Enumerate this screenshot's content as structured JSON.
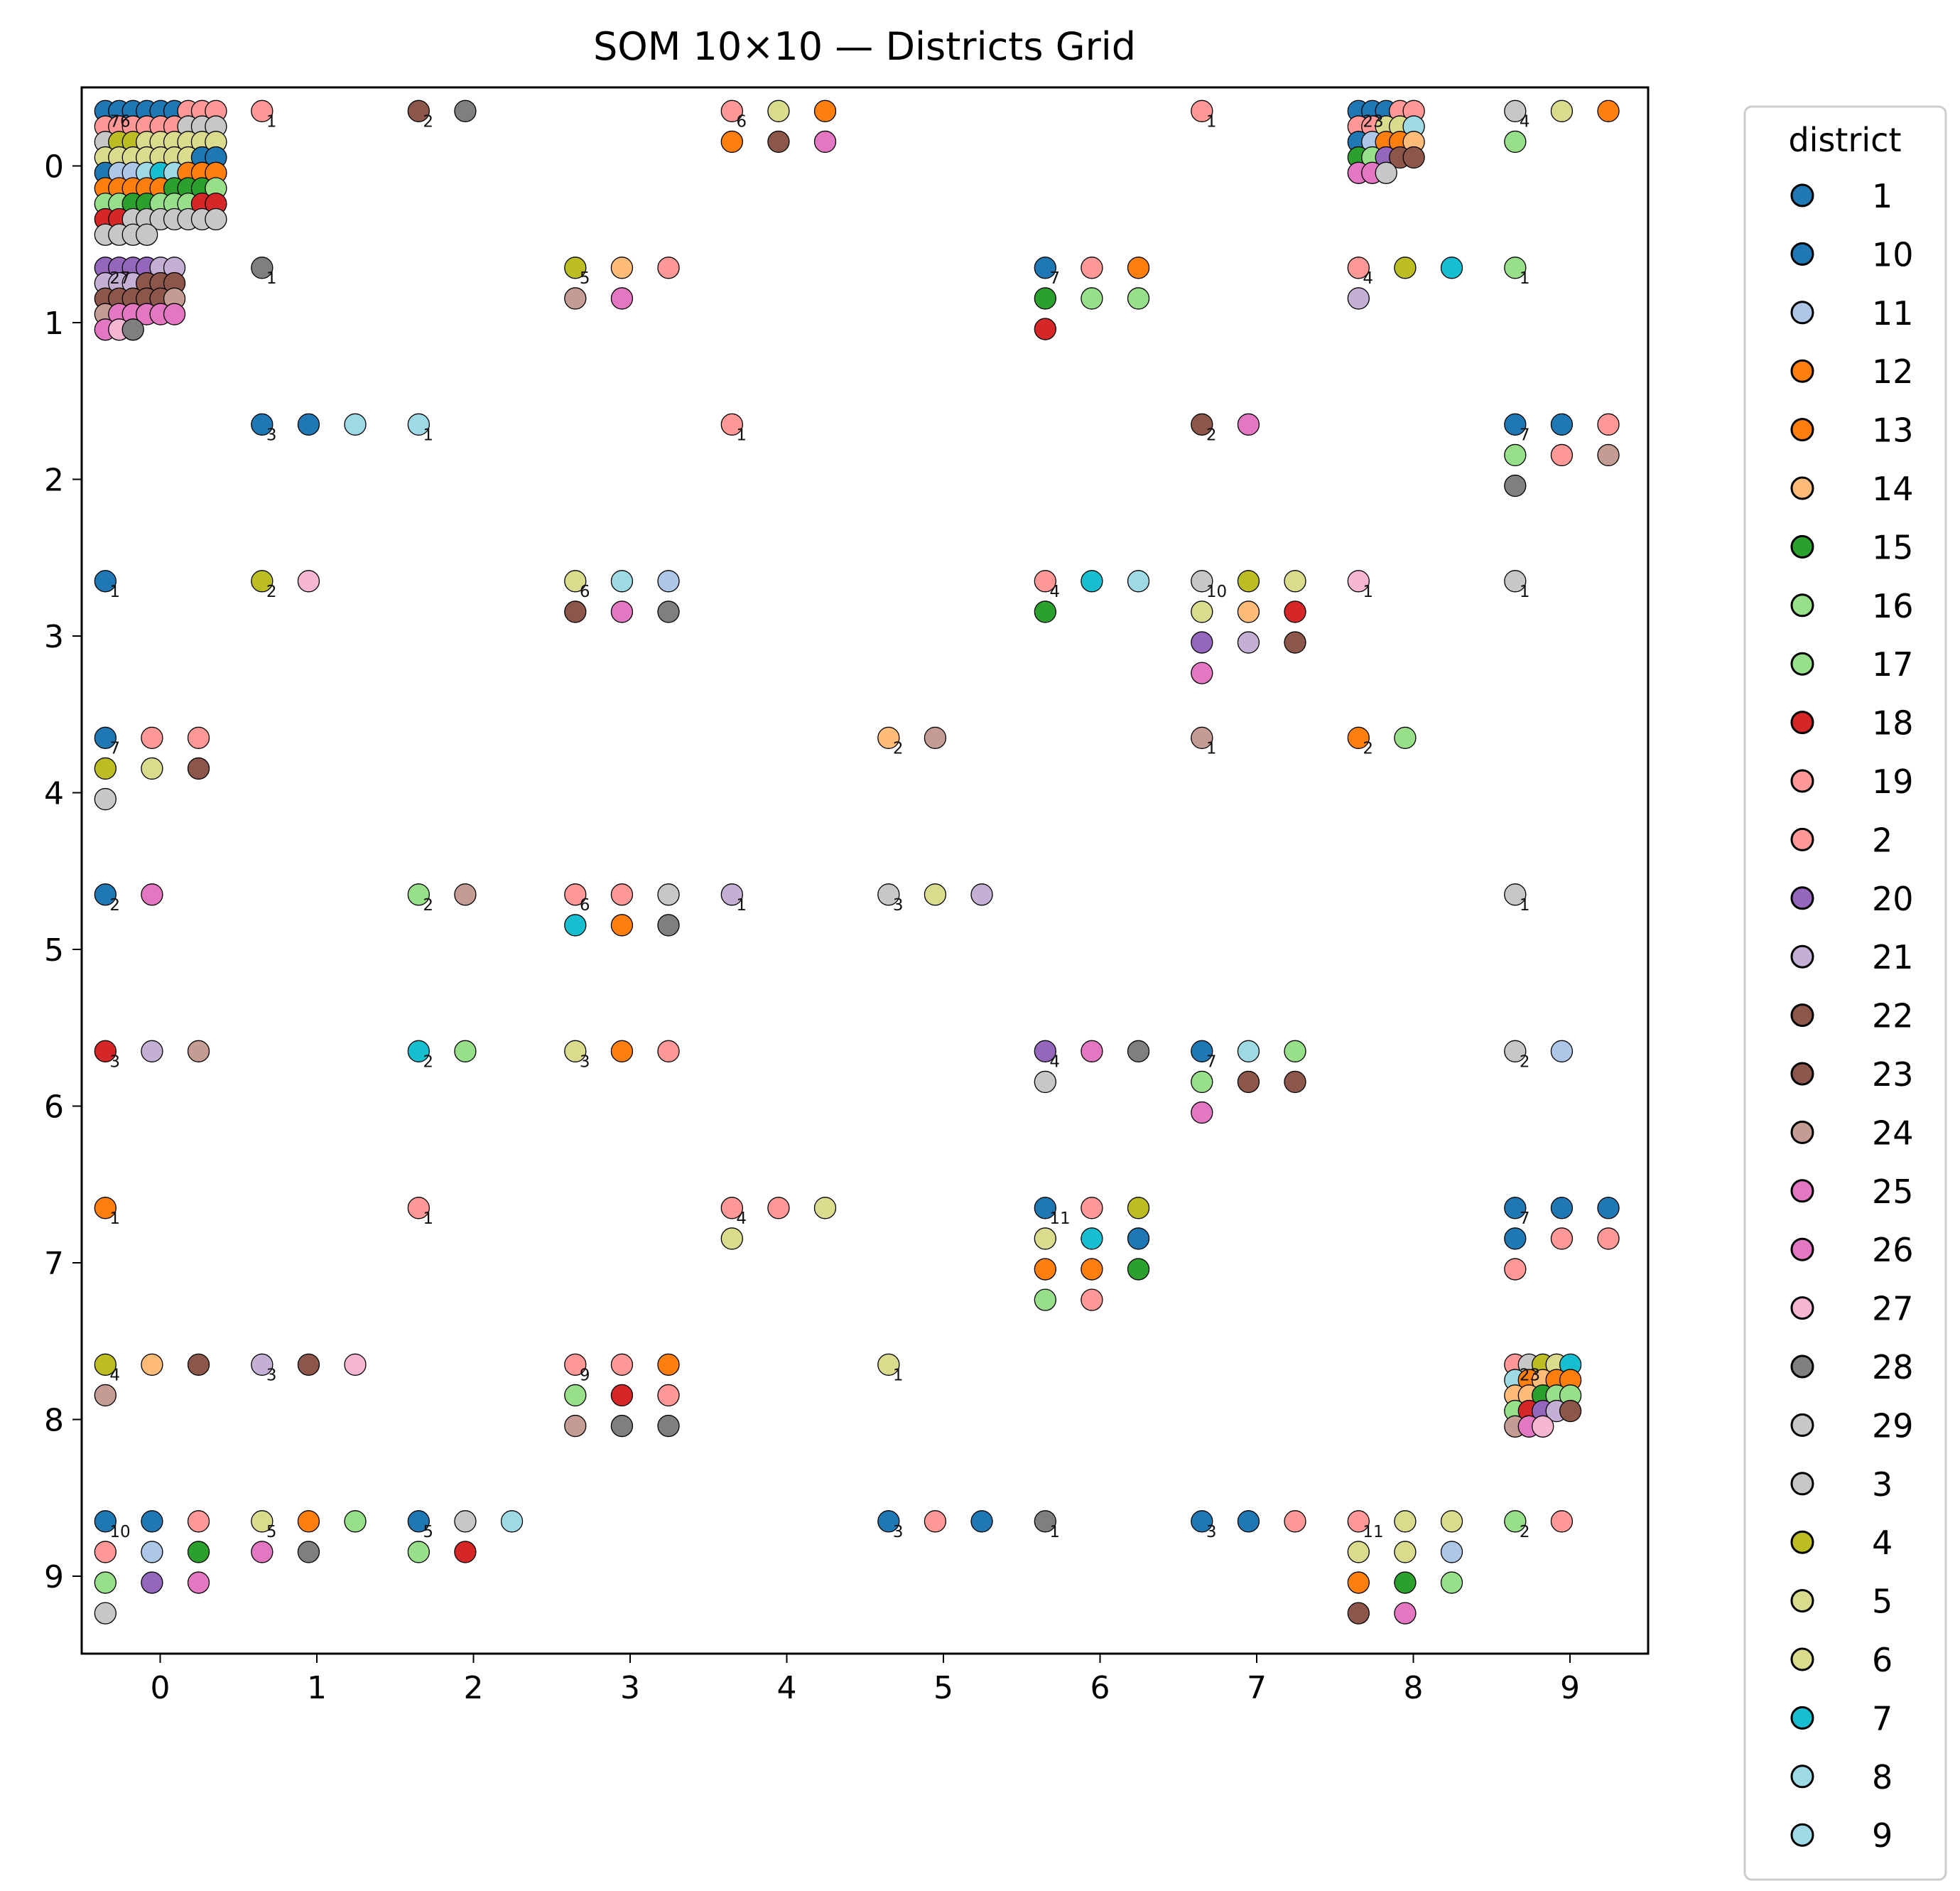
{
  "chart_data": {
    "type": "scatter",
    "title": "SOM 10×10 — Districts Grid",
    "xlabel": "",
    "ylabel": "",
    "xlim": [
      -0.5,
      9.5
    ],
    "ylim": [
      9.5,
      -0.5
    ],
    "y_inverted": true,
    "xticks": [
      "0",
      "1",
      "2",
      "3",
      "4",
      "5",
      "6",
      "7",
      "8",
      "9"
    ],
    "yticks": [
      "0",
      "1",
      "2",
      "3",
      "4",
      "5",
      "6",
      "7",
      "8",
      "9"
    ],
    "grid": false,
    "legend": {
      "title": "district",
      "placement": "outside-right",
      "entries": [
        {
          "label": "1",
          "color": "#1f77b4"
        },
        {
          "label": "10",
          "color": "#1f77b4"
        },
        {
          "label": "11",
          "color": "#aec7e8"
        },
        {
          "label": "12",
          "color": "#ff7f0e"
        },
        {
          "label": "13",
          "color": "#ff7f0e"
        },
        {
          "label": "14",
          "color": "#ffbb78"
        },
        {
          "label": "15",
          "color": "#2ca02c"
        },
        {
          "label": "16",
          "color": "#98df8a"
        },
        {
          "label": "17",
          "color": "#98df8a"
        },
        {
          "label": "18",
          "color": "#d62728"
        },
        {
          "label": "19",
          "color": "#ff9896"
        },
        {
          "label": "2",
          "color": "#ff9896"
        },
        {
          "label": "20",
          "color": "#9467bd"
        },
        {
          "label": "21",
          "color": "#c5b0d5"
        },
        {
          "label": "22",
          "color": "#8c564b"
        },
        {
          "label": "23",
          "color": "#8c564b"
        },
        {
          "label": "24",
          "color": "#c49c94"
        },
        {
          "label": "25",
          "color": "#e377c2"
        },
        {
          "label": "26",
          "color": "#e377c2"
        },
        {
          "label": "27",
          "color": "#f7b6d2"
        },
        {
          "label": "28",
          "color": "#7f7f7f"
        },
        {
          "label": "29",
          "color": "#c7c7c7"
        },
        {
          "label": "3",
          "color": "#c7c7c7"
        },
        {
          "label": "4",
          "color": "#bcbd22"
        },
        {
          "label": "5",
          "color": "#dbdb8d"
        },
        {
          "label": "6",
          "color": "#dbdb8d"
        },
        {
          "label": "7",
          "color": "#17becf"
        },
        {
          "label": "8",
          "color": "#9edae5"
        },
        {
          "label": "9",
          "color": "#9edae5"
        }
      ]
    },
    "cells": [
      {
        "x": 0,
        "y": 0,
        "count": 76,
        "colors": [
          "#1f77b4",
          "#1f77b4",
          "#1f77b4",
          "#1f77b4",
          "#1f77b4",
          "#1f77b4",
          "#ff9896",
          "#ff9896",
          "#ff9896",
          "#ff9896",
          "#ff9896",
          "#ff9896",
          "#ff9896",
          "#ff9896",
          "#ff9896",
          "#c7c7c7",
          "#c7c7c7",
          "#c7c7c7",
          "#c7c7c7",
          "#bcbd22",
          "#bcbd22",
          "#dbdb8d",
          "#dbdb8d",
          "#dbdb8d",
          "#dbdb8d",
          "#dbdb8d",
          "#dbdb8d",
          "#dbdb8d",
          "#dbdb8d",
          "#dbdb8d",
          "#dbdb8d",
          "#dbdb8d",
          "#dbdb8d",
          "#dbdb8d",
          "#1f77b4",
          "#1f77b4",
          "#1f77b4",
          "#aec7e8",
          "#aec7e8",
          "#9edae5",
          "#17becf",
          "#9edae5",
          "#ff7f0e",
          "#ff7f0e",
          "#ff7f0e",
          "#ff7f0e",
          "#ff7f0e",
          "#ff7f0e",
          "#ff7f0e",
          "#ff7f0e",
          "#2ca02c",
          "#2ca02c",
          "#2ca02c",
          "#98df8a",
          "#98df8a",
          "#98df8a",
          "#2ca02c",
          "#2ca02c",
          "#98df8a",
          "#98df8a",
          "#98df8a",
          "#d62728",
          "#d62728",
          "#d62728",
          "#d62728",
          "#c7c7c7",
          "#c7c7c7",
          "#c7c7c7",
          "#c7c7c7",
          "#c7c7c7",
          "#c7c7c7",
          "#c7c7c7",
          "#c7c7c7",
          "#c7c7c7",
          "#c7c7c7",
          "#c7c7c7"
        ]
      },
      {
        "x": 0,
        "y": 1,
        "count": 27,
        "colors": [
          "#9467bd",
          "#9467bd",
          "#9467bd",
          "#9467bd",
          "#c5b0d5",
          "#c5b0d5",
          "#c5b0d5",
          "#c5b0d5",
          "#c5b0d5",
          "#8c564b",
          "#8c564b",
          "#8c564b",
          "#8c564b",
          "#8c564b",
          "#8c564b",
          "#8c564b",
          "#8c564b",
          "#c49c94",
          "#c49c94",
          "#e377c2",
          "#e377c2",
          "#e377c2",
          "#e377c2",
          "#e377c2",
          "#e377c2",
          "#f7b6d2",
          "#7f7f7f"
        ]
      },
      {
        "x": 0,
        "y": 3,
        "count": 1,
        "colors": [
          "#1f77b4"
        ]
      },
      {
        "x": 0,
        "y": 4,
        "count": 7,
        "colors": [
          "#1f77b4",
          "#ff9896",
          "#ff9896",
          "#bcbd22",
          "#dbdb8d",
          "#8c564b",
          "#c7c7c7"
        ]
      },
      {
        "x": 0,
        "y": 5,
        "count": 2,
        "colors": [
          "#1f77b4",
          "#e377c2"
        ]
      },
      {
        "x": 0,
        "y": 6,
        "count": 3,
        "colors": [
          "#d62728",
          "#c5b0d5",
          "#c49c94"
        ]
      },
      {
        "x": 0,
        "y": 7,
        "count": 1,
        "colors": [
          "#ff7f0e"
        ]
      },
      {
        "x": 0,
        "y": 8,
        "count": 4,
        "colors": [
          "#bcbd22",
          "#ffbb78",
          "#8c564b",
          "#c49c94"
        ]
      },
      {
        "x": 0,
        "y": 9,
        "count": 10,
        "colors": [
          "#1f77b4",
          "#1f77b4",
          "#ff9896",
          "#ff9896",
          "#aec7e8",
          "#2ca02c",
          "#98df8a",
          "#9467bd",
          "#e377c2",
          "#c7c7c7"
        ]
      },
      {
        "x": 1,
        "y": 0,
        "count": 1,
        "colors": [
          "#ff9896"
        ]
      },
      {
        "x": 1,
        "y": 1,
        "count": 1,
        "colors": [
          "#7f7f7f"
        ]
      },
      {
        "x": 1,
        "y": 2,
        "count": 3,
        "colors": [
          "#1f77b4",
          "#1f77b4",
          "#9edae5"
        ]
      },
      {
        "x": 1,
        "y": 3,
        "count": 2,
        "colors": [
          "#bcbd22",
          "#f7b6d2"
        ]
      },
      {
        "x": 1,
        "y": 8,
        "count": 3,
        "colors": [
          "#c5b0d5",
          "#8c564b",
          "#f7b6d2"
        ]
      },
      {
        "x": 1,
        "y": 9,
        "count": 5,
        "colors": [
          "#dbdb8d",
          "#ff7f0e",
          "#98df8a",
          "#e377c2",
          "#7f7f7f"
        ]
      },
      {
        "x": 2,
        "y": 0,
        "count": 2,
        "colors": [
          "#8c564b",
          "#7f7f7f"
        ]
      },
      {
        "x": 2,
        "y": 2,
        "count": 1,
        "colors": [
          "#9edae5"
        ]
      },
      {
        "x": 2,
        "y": 5,
        "count": 2,
        "colors": [
          "#98df8a",
          "#c49c94"
        ]
      },
      {
        "x": 2,
        "y": 6,
        "count": 2,
        "colors": [
          "#17becf",
          "#98df8a"
        ]
      },
      {
        "x": 2,
        "y": 7,
        "count": 1,
        "colors": [
          "#ff9896"
        ]
      },
      {
        "x": 2,
        "y": 9,
        "count": 5,
        "colors": [
          "#1f77b4",
          "#c7c7c7",
          "#9edae5",
          "#98df8a",
          "#d62728"
        ]
      },
      {
        "x": 3,
        "y": 1,
        "count": 5,
        "colors": [
          "#bcbd22",
          "#ffbb78",
          "#ff9896",
          "#c49c94",
          "#e377c2"
        ]
      },
      {
        "x": 3,
        "y": 3,
        "count": 6,
        "colors": [
          "#dbdb8d",
          "#9edae5",
          "#aec7e8",
          "#8c564b",
          "#e377c2",
          "#7f7f7f"
        ]
      },
      {
        "x": 3,
        "y": 5,
        "count": 6,
        "colors": [
          "#ff9896",
          "#ff9896",
          "#c7c7c7",
          "#17becf",
          "#ff7f0e",
          "#7f7f7f"
        ]
      },
      {
        "x": 3,
        "y": 6,
        "count": 3,
        "colors": [
          "#dbdb8d",
          "#ff7f0e",
          "#ff9896"
        ]
      },
      {
        "x": 3,
        "y": 8,
        "count": 9,
        "colors": [
          "#ff9896",
          "#ff9896",
          "#ff7f0e",
          "#98df8a",
          "#d62728",
          "#ff9896",
          "#c49c94",
          "#7f7f7f",
          "#7f7f7f"
        ]
      },
      {
        "x": 4,
        "y": 0,
        "count": 6,
        "colors": [
          "#ff9896",
          "#dbdb8d",
          "#ff7f0e",
          "#ff7f0e",
          "#8c564b",
          "#e377c2"
        ]
      },
      {
        "x": 4,
        "y": 2,
        "count": 1,
        "colors": [
          "#ff9896"
        ]
      },
      {
        "x": 4,
        "y": 5,
        "count": 1,
        "colors": [
          "#c5b0d5"
        ]
      },
      {
        "x": 4,
        "y": 7,
        "count": 4,
        "colors": [
          "#ff9896",
          "#ff9896",
          "#dbdb8d",
          "#dbdb8d"
        ]
      },
      {
        "x": 5,
        "y": 4,
        "count": 2,
        "colors": [
          "#ffbb78",
          "#c49c94"
        ]
      },
      {
        "x": 5,
        "y": 5,
        "count": 3,
        "colors": [
          "#c7c7c7",
          "#dbdb8d",
          "#c5b0d5"
        ]
      },
      {
        "x": 5,
        "y": 8,
        "count": 1,
        "colors": [
          "#dbdb8d"
        ]
      },
      {
        "x": 5,
        "y": 9,
        "count": 3,
        "colors": [
          "#1f77b4",
          "#ff9896",
          "#1f77b4"
        ]
      },
      {
        "x": 6,
        "y": 1,
        "count": 7,
        "colors": [
          "#1f77b4",
          "#ff9896",
          "#ff7f0e",
          "#2ca02c",
          "#98df8a",
          "#98df8a",
          "#d62728"
        ]
      },
      {
        "x": 6,
        "y": 3,
        "count": 4,
        "colors": [
          "#ff9896",
          "#17becf",
          "#9edae5",
          "#2ca02c"
        ]
      },
      {
        "x": 6,
        "y": 6,
        "count": 4,
        "colors": [
          "#9467bd",
          "#e377c2",
          "#7f7f7f",
          "#c7c7c7"
        ]
      },
      {
        "x": 6,
        "y": 7,
        "count": 11,
        "colors": [
          "#1f77b4",
          "#ff9896",
          "#bcbd22",
          "#dbdb8d",
          "#17becf",
          "#1f77b4",
          "#ff7f0e",
          "#ff7f0e",
          "#2ca02c",
          "#98df8a",
          "#ff9896"
        ]
      },
      {
        "x": 6,
        "y": 9,
        "count": 1,
        "colors": [
          "#7f7f7f"
        ]
      },
      {
        "x": 7,
        "y": 0,
        "count": 1,
        "colors": [
          "#ff9896"
        ]
      },
      {
        "x": 7,
        "y": 2,
        "count": 2,
        "colors": [
          "#8c564b",
          "#e377c2"
        ]
      },
      {
        "x": 7,
        "y": 3,
        "count": 10,
        "colors": [
          "#c7c7c7",
          "#bcbd22",
          "#dbdb8d",
          "#dbdb8d",
          "#ffbb78",
          "#d62728",
          "#9467bd",
          "#c5b0d5",
          "#8c564b",
          "#e377c2"
        ]
      },
      {
        "x": 7,
        "y": 4,
        "count": 1,
        "colors": [
          "#c49c94"
        ]
      },
      {
        "x": 7,
        "y": 6,
        "count": 7,
        "colors": [
          "#1f77b4",
          "#9edae5",
          "#98df8a",
          "#98df8a",
          "#8c564b",
          "#8c564b",
          "#e377c2"
        ]
      },
      {
        "x": 7,
        "y": 9,
        "count": 3,
        "colors": [
          "#1f77b4",
          "#1f77b4",
          "#ff9896"
        ]
      },
      {
        "x": 8,
        "y": 0,
        "count": 23,
        "colors": [
          "#1f77b4",
          "#1f77b4",
          "#1f77b4",
          "#ff9896",
          "#ff9896",
          "#ff9896",
          "#ff9896",
          "#dbdb8d",
          "#dbdb8d",
          "#9edae5",
          "#1f77b4",
          "#aec7e8",
          "#ff7f0e",
          "#ff7f0e",
          "#ffbb78",
          "#2ca02c",
          "#98df8a",
          "#9467bd",
          "#8c564b",
          "#8c564b",
          "#e377c2",
          "#e377c2",
          "#c7c7c7"
        ]
      },
      {
        "x": 8,
        "y": 1,
        "count": 4,
        "colors": [
          "#ff9896",
          "#bcbd22",
          "#17becf",
          "#c5b0d5"
        ]
      },
      {
        "x": 8,
        "y": 3,
        "count": 1,
        "colors": [
          "#f7b6d2"
        ]
      },
      {
        "x": 8,
        "y": 4,
        "count": 2,
        "colors": [
          "#ff7f0e",
          "#98df8a"
        ]
      },
      {
        "x": 8,
        "y": 9,
        "count": 11,
        "colors": [
          "#ff9896",
          "#dbdb8d",
          "#dbdb8d",
          "#dbdb8d",
          "#dbdb8d",
          "#aec7e8",
          "#ff7f0e",
          "#2ca02c",
          "#98df8a",
          "#8c564b",
          "#e377c2"
        ]
      },
      {
        "x": 9,
        "y": 0,
        "count": 4,
        "colors": [
          "#c7c7c7",
          "#dbdb8d",
          "#ff7f0e",
          "#98df8a"
        ]
      },
      {
        "x": 9,
        "y": 1,
        "count": 1,
        "colors": [
          "#98df8a"
        ]
      },
      {
        "x": 9,
        "y": 2,
        "count": 7,
        "colors": [
          "#1f77b4",
          "#1f77b4",
          "#ff9896",
          "#98df8a",
          "#ff9896",
          "#c49c94",
          "#7f7f7f"
        ]
      },
      {
        "x": 9,
        "y": 3,
        "count": 1,
        "colors": [
          "#c7c7c7"
        ]
      },
      {
        "x": 9,
        "y": 5,
        "count": 1,
        "colors": [
          "#c7c7c7"
        ]
      },
      {
        "x": 9,
        "y": 6,
        "count": 2,
        "colors": [
          "#c7c7c7",
          "#aec7e8"
        ]
      },
      {
        "x": 9,
        "y": 7,
        "count": 7,
        "colors": [
          "#1f77b4",
          "#1f77b4",
          "#1f77b4",
          "#1f77b4",
          "#ff9896",
          "#ff9896",
          "#ff9896"
        ]
      },
      {
        "x": 9,
        "y": 8,
        "count": 23,
        "colors": [
          "#ff9896",
          "#c7c7c7",
          "#bcbd22",
          "#dbdb8d",
          "#17becf",
          "#9edae5",
          "#ff7f0e",
          "#ffbb78",
          "#ff7f0e",
          "#ff7f0e",
          "#ffbb78",
          "#ffbb78",
          "#2ca02c",
          "#98df8a",
          "#98df8a",
          "#98df8a",
          "#d62728",
          "#9467bd",
          "#c5b0d5",
          "#8c564b",
          "#c49c94",
          "#e377c2",
          "#f7b6d2"
        ]
      },
      {
        "x": 9,
        "y": 9,
        "count": 2,
        "colors": [
          "#98df8a",
          "#ff9896"
        ]
      }
    ]
  }
}
